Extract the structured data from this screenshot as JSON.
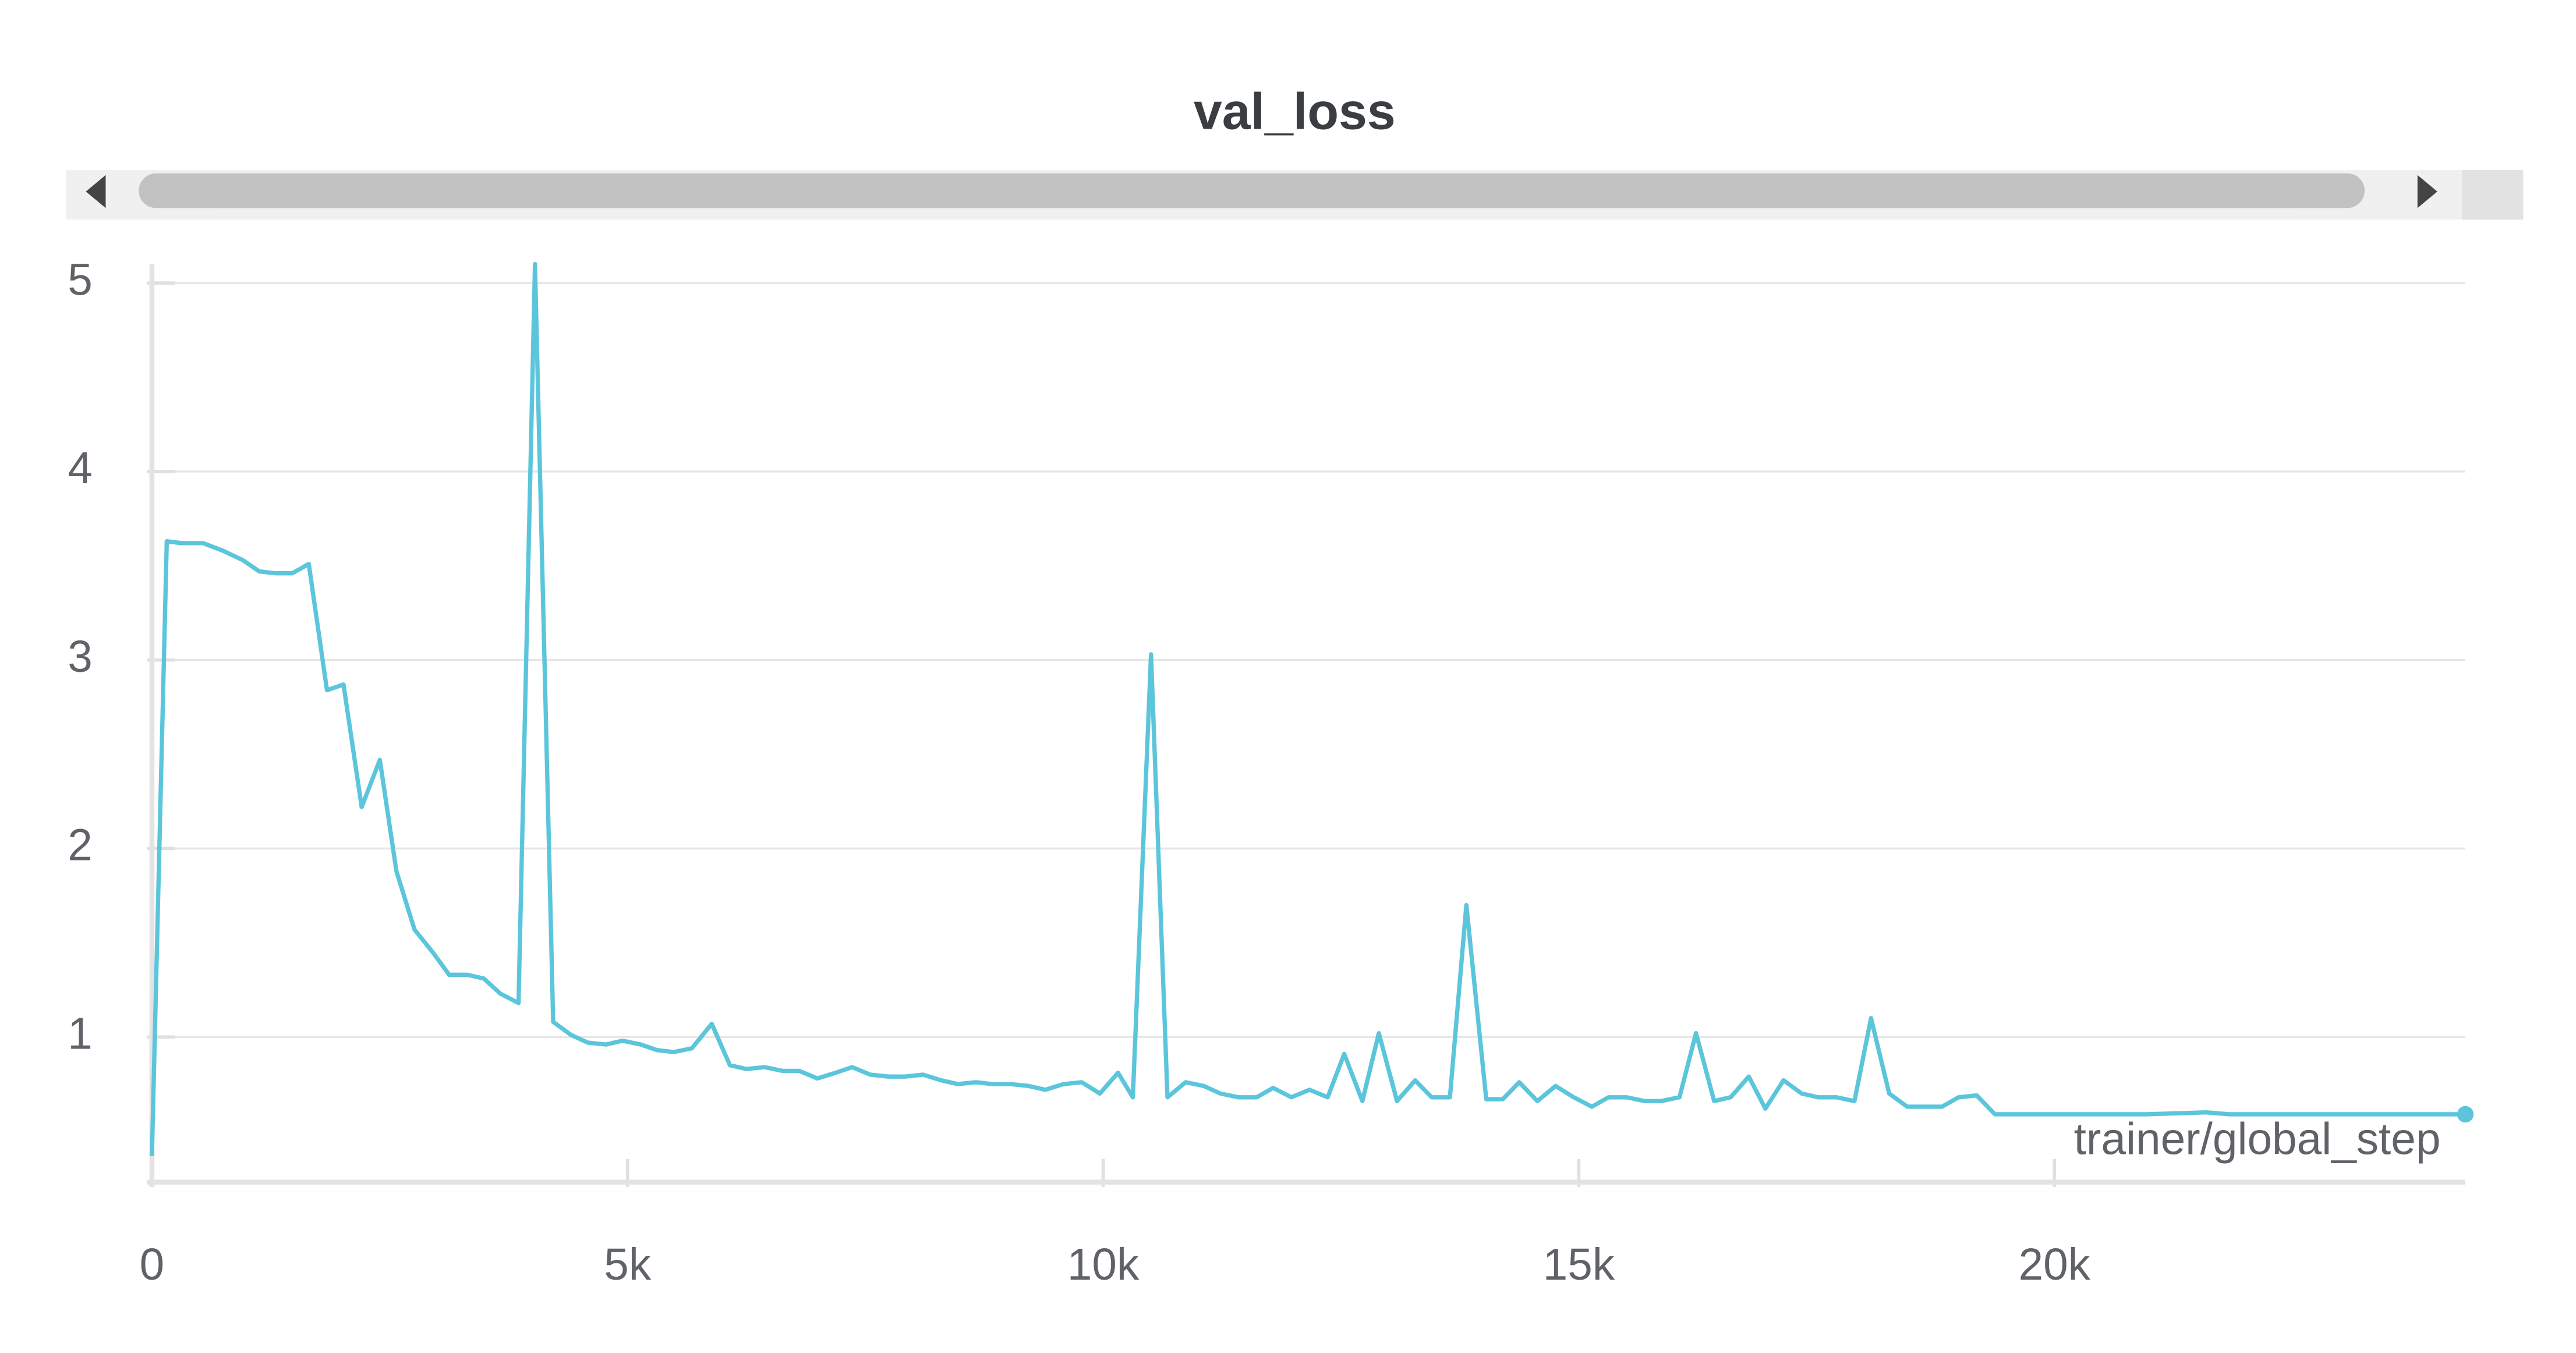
{
  "chart_data": {
    "type": "line",
    "title": "val_loss",
    "xlabel": "trainer/global_step",
    "color": "#5bc5db",
    "grid": true,
    "xlim": [
      0,
      24320
    ],
    "ylim": [
      0.23,
      5.1
    ],
    "xticks": [
      0,
      {
        "value": 5000,
        "label": "5k"
      },
      {
        "value": 10000,
        "label": "10k"
      },
      {
        "value": 15000,
        "label": "15k"
      },
      {
        "value": 20000,
        "label": "20k"
      }
    ],
    "yticks": [
      1,
      2,
      3,
      4,
      5
    ],
    "x": [
      0,
      156,
      312,
      538,
      746,
      955,
      1128,
      1302,
      1476,
      1649,
      1840,
      2014,
      2205,
      2396,
      2570,
      2760,
      2951,
      3125,
      3316,
      3489,
      3663,
      3854,
      4027,
      4218,
      4409,
      4583,
      4774,
      4948,
      5139,
      5312,
      5486,
      5677,
      5885,
      6076,
      6250,
      6441,
      6632,
      6805,
      6996,
      7187,
      7361,
      7552,
      7742,
      7916,
      8107,
      8298,
      8472,
      8663,
      8836,
      9027,
      9218,
      9392,
      9583,
      9774,
      9965,
      10156,
      10312,
      10503,
      10676,
      10867,
      11058,
      11232,
      11423,
      11614,
      11787,
      11978,
      12169,
      12360,
      12534,
      12725,
      12898,
      13089,
      13280,
      13454,
      13645,
      13818,
      14027,
      14201,
      14374,
      14565,
      14756,
      14947,
      15138,
      15312,
      15502,
      15693,
      15867,
      16058,
      16232,
      16423,
      16596,
      16787,
      16961,
      17152,
      17343,
      17516,
      17707,
      17898,
      18072,
      18263,
      18453,
      18627,
      18818,
      18992,
      19183,
      19374,
      19565,
      20103,
      20971,
      21596,
      21839,
      22707,
      23575,
      24320
    ],
    "values": [
      0.37,
      3.63,
      3.62,
      3.62,
      3.58,
      3.53,
      3.47,
      3.46,
      3.46,
      3.51,
      2.84,
      2.87,
      2.22,
      2.47,
      1.88,
      1.57,
      1.45,
      1.33,
      1.33,
      1.31,
      1.23,
      1.18,
      5.1,
      1.08,
      1.01,
      0.97,
      0.96,
      0.98,
      0.96,
      0.93,
      0.92,
      0.94,
      1.07,
      0.85,
      0.83,
      0.84,
      0.82,
      0.82,
      0.78,
      0.81,
      0.84,
      0.8,
      0.79,
      0.79,
      0.8,
      0.77,
      0.75,
      0.76,
      0.75,
      0.75,
      0.74,
      0.72,
      0.75,
      0.76,
      0.7,
      0.81,
      0.68,
      3.03,
      0.68,
      0.76,
      0.74,
      0.7,
      0.68,
      0.68,
      0.73,
      0.68,
      0.72,
      0.68,
      0.91,
      0.66,
      1.02,
      0.66,
      0.77,
      0.68,
      0.68,
      1.7,
      0.67,
      0.67,
      0.76,
      0.66,
      0.74,
      0.68,
      0.63,
      0.68,
      0.68,
      0.66,
      0.66,
      0.68,
      1.02,
      0.66,
      0.68,
      0.79,
      0.62,
      0.77,
      0.7,
      0.68,
      0.68,
      0.66,
      1.1,
      0.7,
      0.63,
      0.63,
      0.63,
      0.68,
      0.69,
      0.59,
      0.59,
      0.59,
      0.59,
      0.6,
      0.59,
      0.59,
      0.59,
      0.59
    ]
  }
}
